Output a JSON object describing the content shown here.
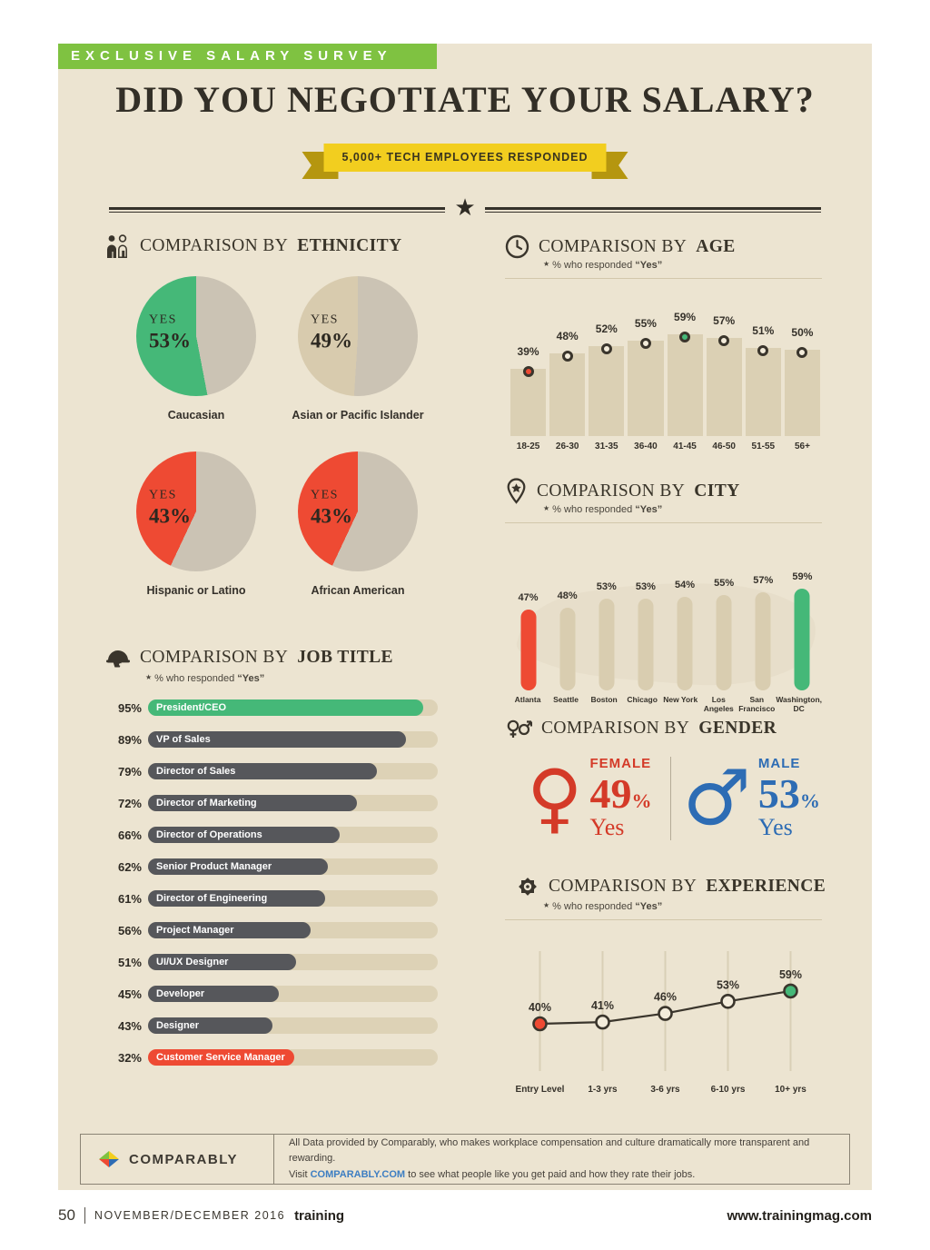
{
  "page": {
    "kicker": "EXCLUSIVE SALARY SURVEY",
    "title": "DID YOU NEGOTIATE YOUR SALARY?",
    "ribbon": "5,000+ TECH EMPLOYEES RESPONDED",
    "divider_star": "★"
  },
  "sections": {
    "marker": "★",
    "subtitle_pre": "% who responded ",
    "subtitle_yes": "“Yes”",
    "ethnicity": {
      "prefix": "COMPARISON BY ",
      "bold": "ETHNICITY"
    },
    "age": {
      "prefix": "COMPARISON BY ",
      "bold": "AGE"
    },
    "city": {
      "prefix": "COMPARISON BY ",
      "bold": "CITY"
    },
    "job_title": {
      "prefix": "COMPARISON BY ",
      "bold": "JOB TITLE"
    },
    "gender": {
      "prefix": "COMPARISON BY ",
      "bold": "GENDER"
    },
    "experience": {
      "prefix": "COMPARISON BY ",
      "bold": "EXPERIENCE"
    }
  },
  "colors": {
    "header_green": "#7fc241",
    "cream_background": "#ece4d1",
    "ribbon_yellow": "#f2ce1f",
    "bar_tan": "#dbd0b4",
    "bar_dark_gray": "#56575b",
    "accent_red": "#ee4a33",
    "accent_green": "#45b878",
    "female_red": "#d43a28",
    "male_blue": "#2d6cb4",
    "link_blue": "#3d7ec2"
  },
  "chart_data": [
    {
      "id": "ethnicity",
      "type": "pie",
      "title": "COMPARISON BY ETHNICITY",
      "yes_word": "YES",
      "remainder_color": "#cbc3b4",
      "pies": [
        {
          "label": "Caucasian",
          "yes_pct": 53,
          "yes_color": "#45b878"
        },
        {
          "label": "Asian or Pacific Islander",
          "yes_pct": 49,
          "yes_color": "#d8cbae"
        },
        {
          "label": "Hispanic or Latino",
          "yes_pct": 43,
          "yes_color": "#ee4a33"
        },
        {
          "label": "African American",
          "yes_pct": 43,
          "yes_color": "#ee4a33"
        }
      ]
    },
    {
      "id": "age",
      "type": "bar",
      "title": "COMPARISON BY AGE",
      "subtitle": "% who responded “Yes”",
      "categories": [
        "18-25",
        "26-30",
        "31-35",
        "36-40",
        "41-45",
        "46-50",
        "51-55",
        "56+"
      ],
      "values": [
        39,
        48,
        52,
        55,
        59,
        57,
        51,
        50
      ],
      "unit": "%",
      "bar_color": "#dbd0b4",
      "low_color": "#ee4a33",
      "high_color": "#45b878"
    },
    {
      "id": "city",
      "type": "bar",
      "title": "COMPARISON BY CITY",
      "subtitle": "% who responded “Yes”",
      "categories": [
        "Atlanta",
        "Seattle",
        "Boston",
        "Chicago",
        "New York",
        "Los Angeles",
        "San Francisco",
        "Washington, DC"
      ],
      "values": [
        47,
        48,
        53,
        53,
        54,
        55,
        57,
        59
      ],
      "unit": "%",
      "bar_color": "#d9cdb0",
      "low_color": "#ee4a33",
      "high_color": "#45b878"
    },
    {
      "id": "job_title",
      "type": "bar",
      "orientation": "horizontal",
      "title": "COMPARISON BY JOB TITLE",
      "subtitle": "% who responded “Yes”",
      "categories": [
        "President/CEO",
        "VP of Sales",
        "Director of Sales",
        "Director of Marketing",
        "Director of Operations",
        "Senior Product Manager",
        "Director of Engineering",
        "Project Manager",
        "UI/UX Designer",
        "Developer",
        "Designer",
        "Customer Service Manager"
      ],
      "values": [
        95,
        89,
        79,
        72,
        66,
        62,
        61,
        56,
        51,
        45,
        43,
        32
      ],
      "unit": "%",
      "xlim": [
        0,
        100
      ],
      "top_color": "#45b878",
      "mid_color": "#56575b",
      "bottom_color": "#ee4a33"
    },
    {
      "id": "gender",
      "type": "table",
      "title": "COMPARISON BY GENDER",
      "categories": [
        "FEMALE",
        "MALE"
      ],
      "values": [
        49,
        53
      ],
      "unit": "%",
      "answer": "Yes",
      "female_color": "#d43a28",
      "male_color": "#2d6cb4"
    },
    {
      "id": "experience",
      "type": "line",
      "title": "COMPARISON BY EXPERIENCE",
      "subtitle": "% who responded “Yes”",
      "categories": [
        "Entry Level",
        "1-3 yrs",
        "3-6 yrs",
        "6-10 yrs",
        "10+ yrs"
      ],
      "values": [
        40,
        41,
        46,
        53,
        59
      ],
      "unit": "%",
      "line_color": "#3a352c",
      "low_color": "#ee4a33",
      "high_color": "#45b878",
      "grid": "vertical"
    }
  ],
  "credit": {
    "brand": "COMPARABLY",
    "line1": "All Data provided by Comparably, who makes workplace compensation and culture dramatically more transparent and rewarding.",
    "line2_prefix": "Visit ",
    "line2_link": "COMPARABLY.COM",
    "line2_suffix": " to see what people like you get paid and how they rate their jobs."
  },
  "footer": {
    "page_number": "50",
    "issue": "NOVEMBER/DECEMBER 2016",
    "brand": "training",
    "website": "www.trainingmag.com"
  }
}
